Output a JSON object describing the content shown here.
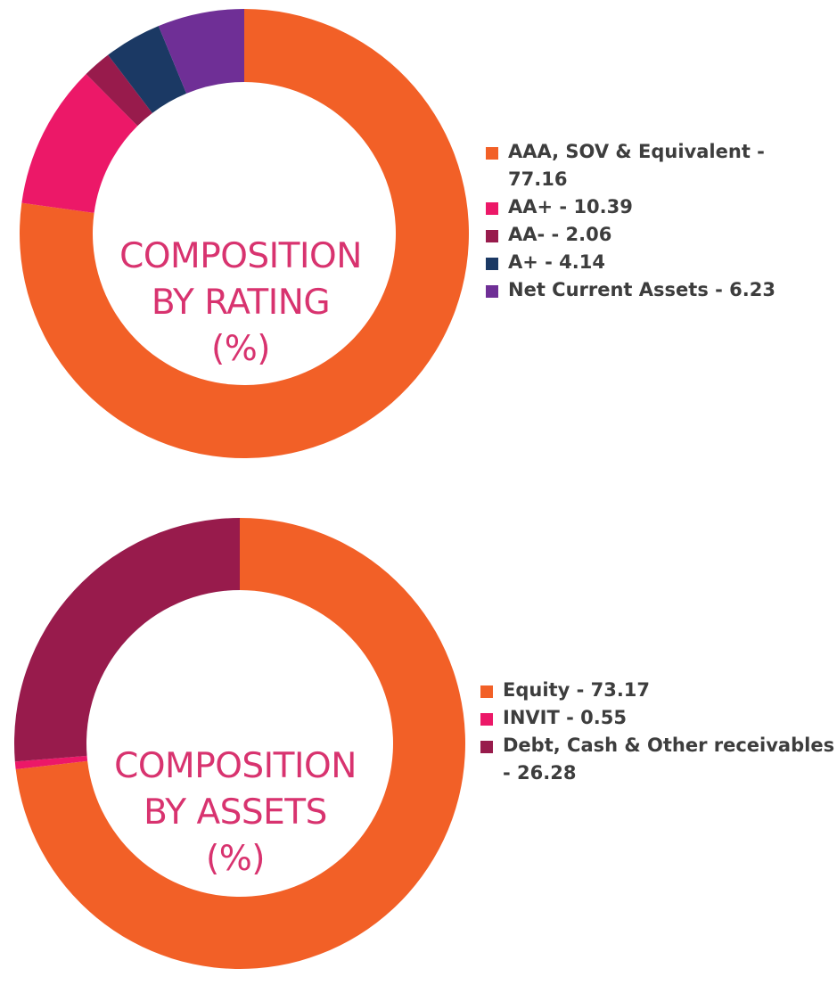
{
  "chart_data": [
    {
      "type": "pie",
      "title": "COMPOSITION BY RATING (%)",
      "title_lines": [
        "COMPOSITION",
        "BY RATING",
        "(%)"
      ],
      "legend_position": "right",
      "slices": [
        {
          "name": "AAA, SOV & Equivalent",
          "value": 77.16,
          "label": "AAA, SOV & Equivalent - 77.16",
          "color": "#f26027"
        },
        {
          "name": "AA+",
          "value": 10.39,
          "label": "AA+ - 10.39",
          "color": "#ec1868"
        },
        {
          "name": "AA-",
          "value": 2.06,
          "label": "AA- - 2.06",
          "color": "#981b4c"
        },
        {
          "name": "A+",
          "value": 4.14,
          "label": "A+ - 4.14",
          "color": "#1b3964"
        },
        {
          "name": "Net Current Assets",
          "value": 6.23,
          "label": "Net Current Assets - 6.23",
          "color": "#6f2f96"
        }
      ]
    },
    {
      "type": "pie",
      "title": "COMPOSITION BY ASSETS (%)",
      "title_lines": [
        "COMPOSITION",
        "BY ASSETS",
        "(%)"
      ],
      "legend_position": "right",
      "slices": [
        {
          "name": "Equity",
          "value": 73.17,
          "label": "Equity - 73.17",
          "color": "#f26027"
        },
        {
          "name": "INVIT",
          "value": 0.55,
          "label": "INVIT - 0.55",
          "color": "#ec1868"
        },
        {
          "name": "Debt, Cash & Other receivables",
          "value": 26.28,
          "label": "Debt, Cash & Other receivables - 26.28",
          "color": "#981b4c"
        }
      ]
    }
  ]
}
